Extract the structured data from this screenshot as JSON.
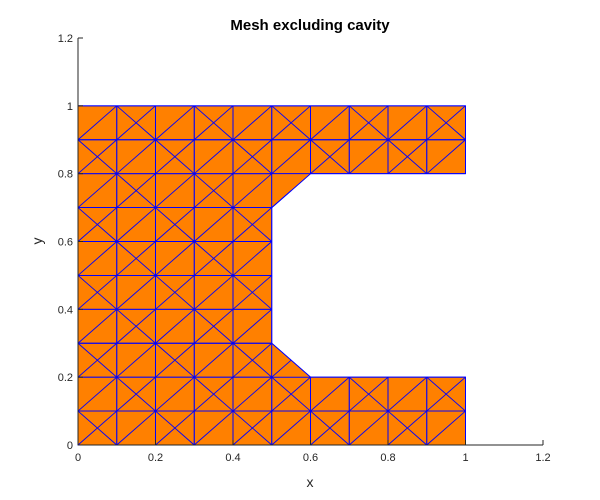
{
  "chart_data": {
    "type": "mesh",
    "title": "Mesh excluding cavity",
    "xlabel": "x",
    "ylabel": "y",
    "xlim": [
      0,
      1.2
    ],
    "ylim": [
      0,
      1.2
    ],
    "xticks": [
      {
        "value": 0,
        "label": "0"
      },
      {
        "value": 0.2,
        "label": "0.2"
      },
      {
        "value": 0.4,
        "label": "0.4"
      },
      {
        "value": 0.6,
        "label": "0.6"
      },
      {
        "value": 0.8,
        "label": "0.8"
      },
      {
        "value": 1,
        "label": "1"
      },
      {
        "value": 1.2,
        "label": "1.2"
      }
    ],
    "yticks": [
      {
        "value": 0,
        "label": "0"
      },
      {
        "value": 0.2,
        "label": "0.2"
      },
      {
        "value": 0.4,
        "label": "0.4"
      },
      {
        "value": 0.6,
        "label": "0.6"
      },
      {
        "value": 0.8,
        "label": "0.8"
      },
      {
        "value": 1,
        "label": "1"
      },
      {
        "value": 1.2,
        "label": "1.2"
      }
    ],
    "grid": false,
    "mesh": {
      "element_type": "triangle",
      "outer_boundary": [
        [
          0,
          0
        ],
        [
          1,
          0
        ],
        [
          1,
          0.2
        ],
        [
          0.6,
          0.2
        ],
        [
          0.5,
          0.3
        ],
        [
          0.5,
          0.7
        ],
        [
          0.6,
          0.8
        ],
        [
          1,
          0.8
        ],
        [
          1,
          1
        ],
        [
          0,
          1
        ]
      ],
      "cavity": [
        [
          0.6,
          0.2
        ],
        [
          1,
          0.2
        ],
        [
          1,
          0.8
        ],
        [
          0.6,
          0.8
        ],
        [
          0.5,
          0.7
        ],
        [
          0.5,
          0.3
        ]
      ],
      "mesh_spacing": 0.1,
      "face_color": "#ff8000",
      "edge_color": "#0000ff"
    },
    "colors": {
      "axes": "#262626",
      "background": "#ffffff"
    }
  }
}
